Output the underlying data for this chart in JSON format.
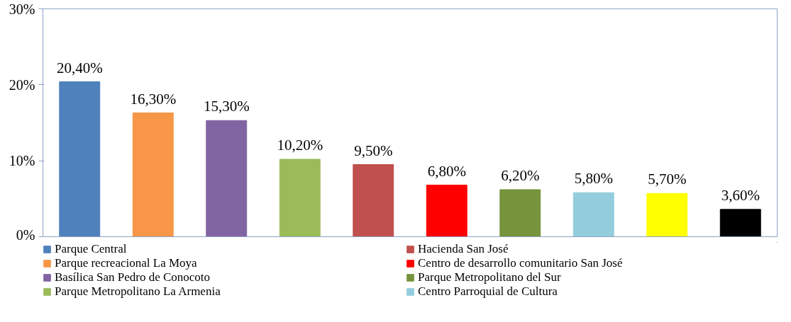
{
  "chart_data": {
    "type": "bar",
    "categories": [
      null,
      null,
      null,
      null,
      null,
      null,
      null,
      null,
      null,
      null
    ],
    "series": [
      {
        "name": "Parque Central",
        "color": "#4f81bd",
        "values": [
          20.4,
          null,
          null,
          null,
          null,
          null,
          null,
          null,
          null,
          null
        ],
        "value_labels": [
          "20,40%",
          null,
          null,
          null,
          null,
          null,
          null,
          null,
          null,
          null
        ]
      },
      {
        "name": "Parque recreacional La Moya",
        "color": "#f79646",
        "values": [
          null,
          16.3,
          null,
          null,
          null,
          null,
          null,
          null,
          null,
          null
        ],
        "value_labels": [
          null,
          "16,30%",
          null,
          null,
          null,
          null,
          null,
          null,
          null,
          null
        ]
      },
      {
        "name": "Basílica San Pedro de Conocoto",
        "color": "#8064a2",
        "values": [
          null,
          null,
          15.3,
          null,
          null,
          null,
          null,
          null,
          null,
          null
        ],
        "value_labels": [
          null,
          null,
          "15,30%",
          null,
          null,
          null,
          null,
          null,
          null,
          null
        ]
      },
      {
        "name": "Parque Metropolitano La Armenia",
        "color": "#9bbb59",
        "values": [
          null,
          null,
          null,
          10.2,
          null,
          null,
          null,
          null,
          null,
          null
        ],
        "value_labels": [
          null,
          null,
          null,
          "10,20%",
          null,
          null,
          null,
          null,
          null,
          null
        ]
      },
      {
        "name": "Hacienda San José",
        "color": "#c0504d",
        "values": [
          null,
          null,
          null,
          null,
          9.5,
          null,
          null,
          null,
          null,
          null
        ],
        "value_labels": [
          null,
          null,
          null,
          null,
          "9,50%",
          null,
          null,
          null,
          null,
          null
        ]
      },
      {
        "name": "Centro de desarrollo comunitario San José",
        "color": "#ff0000",
        "values": [
          null,
          null,
          null,
          null,
          null,
          6.8,
          null,
          null,
          null,
          null
        ],
        "value_labels": [
          null,
          null,
          null,
          null,
          null,
          "6,80%",
          null,
          null,
          null,
          null
        ]
      },
      {
        "name": "Parque Metropolitano del Sur",
        "color": "#77933c",
        "values": [
          null,
          null,
          null,
          null,
          null,
          null,
          6.2,
          null,
          null,
          null
        ],
        "value_labels": [
          null,
          null,
          null,
          null,
          null,
          null,
          "6,20%",
          null,
          null,
          null
        ]
      },
      {
        "name": "Centro Parroquial de Cultura",
        "color": "#93cddd",
        "values": [
          null,
          null,
          null,
          null,
          null,
          null,
          null,
          5.8,
          null,
          null
        ],
        "value_labels": [
          null,
          null,
          null,
          null,
          null,
          null,
          null,
          "5,80%",
          null,
          null
        ]
      },
      {
        "color": "#ffff00",
        "values": [
          null,
          null,
          null,
          null,
          null,
          null,
          null,
          null,
          5.7,
          null
        ],
        "value_labels": [
          null,
          null,
          null,
          null,
          null,
          null,
          null,
          null,
          "5,70%",
          null
        ]
      },
      {
        "color": "#000000",
        "values": [
          null,
          null,
          null,
          null,
          null,
          null,
          null,
          null,
          null,
          3.6
        ],
        "value_labels": [
          null,
          null,
          null,
          null,
          null,
          null,
          null,
          null,
          null,
          "3,60%"
        ]
      }
    ],
    "ylim": [
      0,
      30
    ],
    "yticks": [
      {
        "value": 0,
        "label": "0%"
      },
      {
        "value": 10,
        "label": "10%"
      },
      {
        "value": 20,
        "label": "20%"
      },
      {
        "value": 30,
        "label": "30%"
      }
    ],
    "grid": false,
    "legend": "bottom"
  }
}
